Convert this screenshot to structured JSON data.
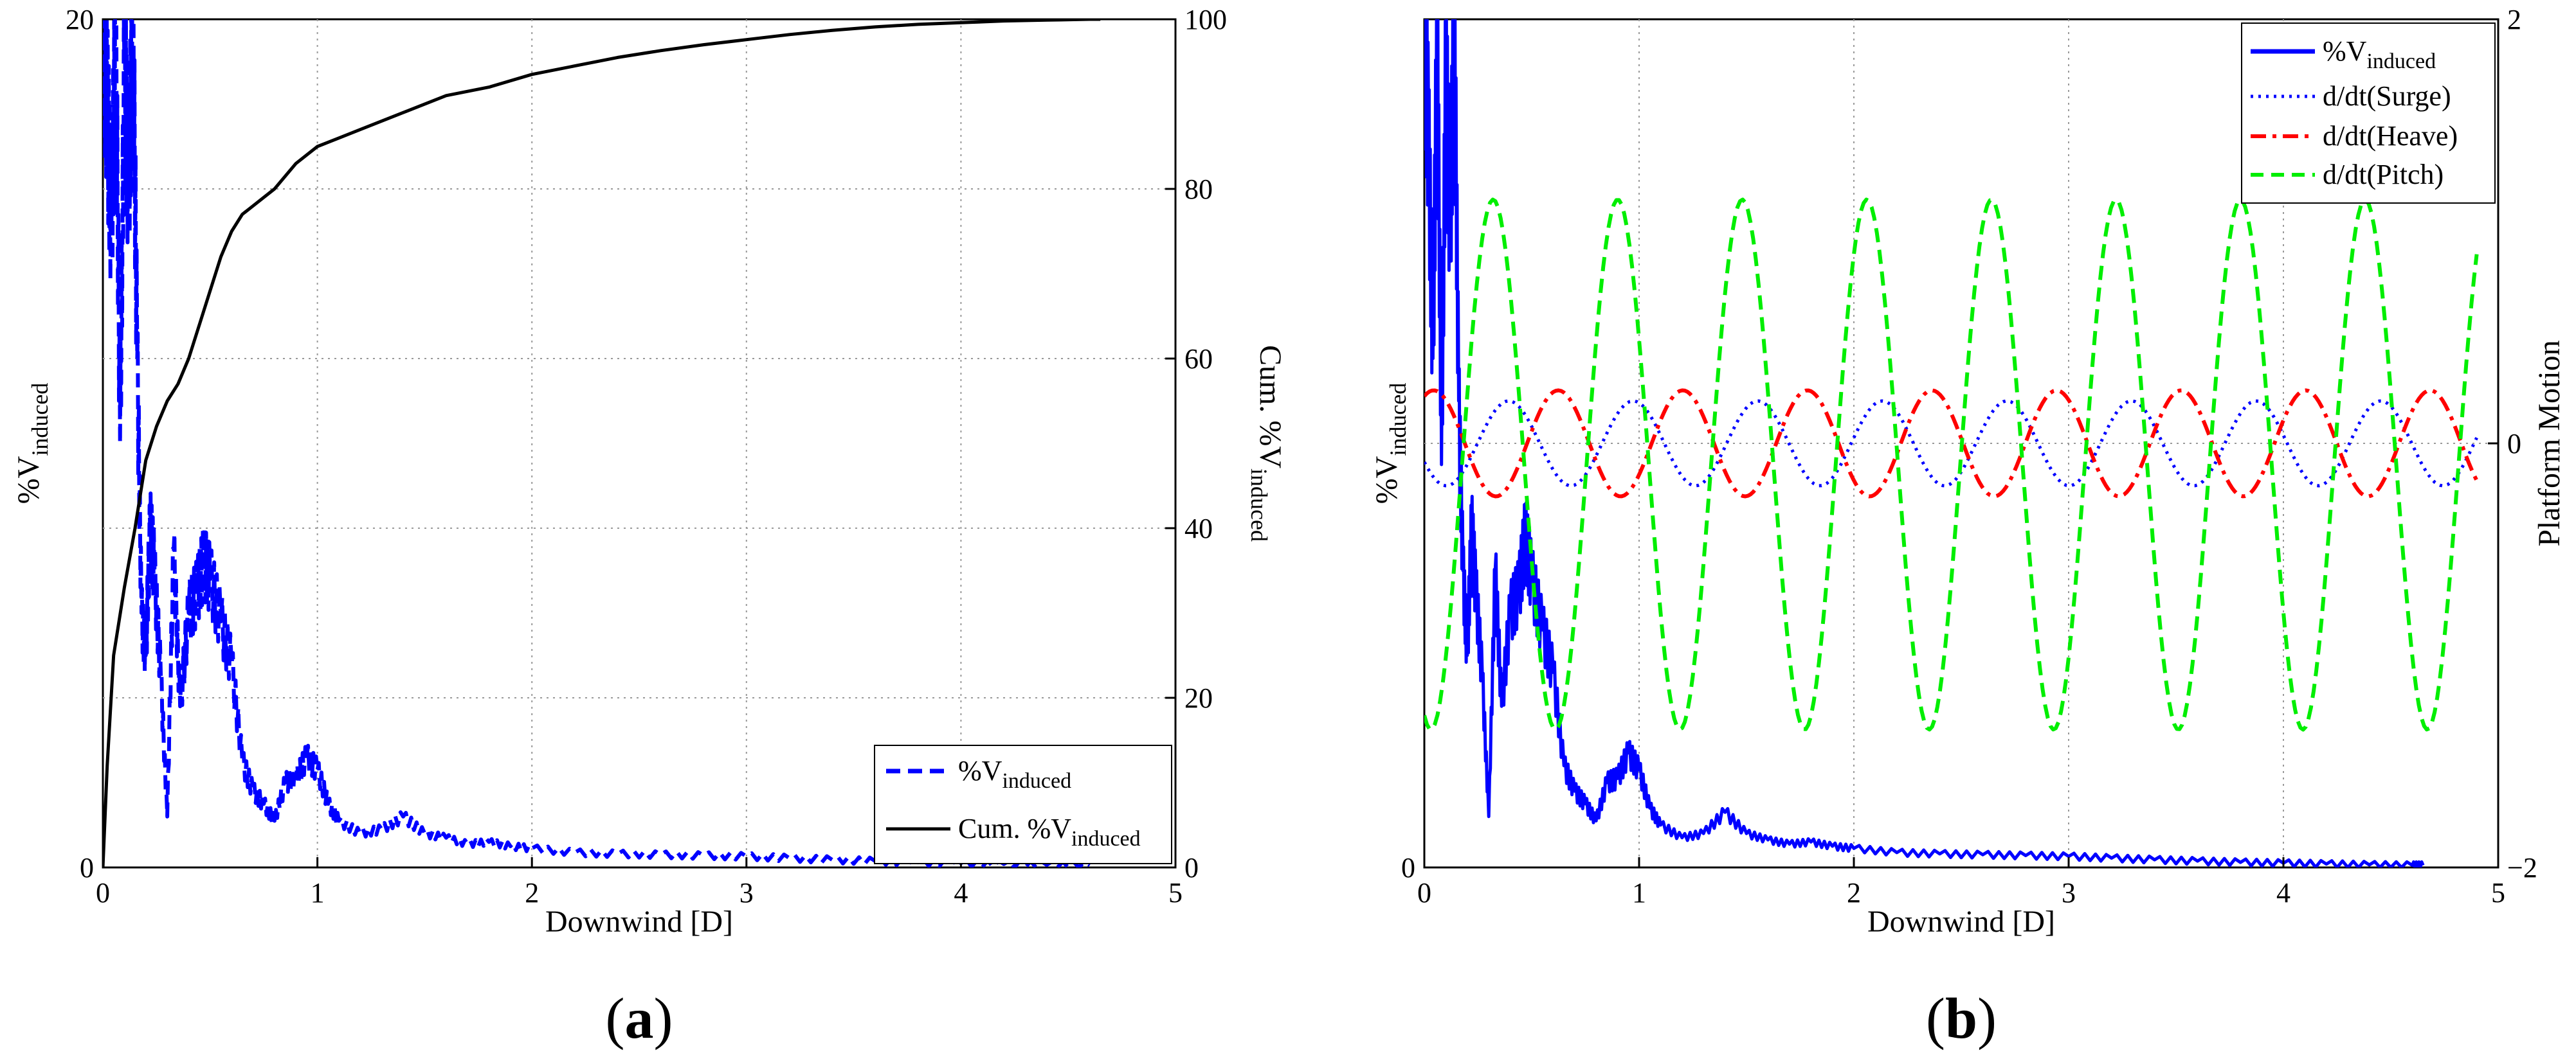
{
  "figure": {
    "panels": [
      {
        "label_open": "(",
        "label_letter": "a",
        "label_close": ")"
      },
      {
        "label_open": "(",
        "label_letter": "b",
        "label_close": ")"
      }
    ]
  },
  "chart_data": [
    {
      "type": "line",
      "panel": "a",
      "xlabel": "Downwind [D]",
      "ylabel": "%V",
      "ylabel_sub": "induced",
      "y2label": "Cum. %V",
      "y2label_sub": "induced",
      "xlim": [
        0,
        5
      ],
      "ylim": [
        0,
        20
      ],
      "y2lim": [
        0,
        100
      ],
      "xticks": [
        "0",
        "1",
        "2",
        "3",
        "4",
        "5"
      ],
      "yticks": [
        "0",
        "20"
      ],
      "y2ticks": [
        "0",
        "20",
        "40",
        "60",
        "80",
        "100"
      ],
      "grid": true,
      "legend_position": "bottom-right",
      "series": [
        {
          "name": "%V",
          "name_sub": "induced",
          "axis": "left",
          "color": "#0000ff",
          "style": "dashed",
          "x": [
            0.0,
            0.02,
            0.04,
            0.06,
            0.08,
            0.1,
            0.12,
            0.14,
            0.16,
            0.18,
            0.2,
            0.22,
            0.24,
            0.27,
            0.3,
            0.33,
            0.36,
            0.4,
            0.44,
            0.47,
            0.5,
            0.55,
            0.6,
            0.65,
            0.7,
            0.75,
            0.8,
            0.85,
            0.9,
            0.95,
            1.0,
            1.05,
            1.1,
            1.2,
            1.3,
            1.4,
            1.5,
            1.6,
            1.7,
            1.8,
            1.9,
            2.0,
            2.2,
            2.4,
            2.6,
            2.8,
            3.0,
            3.2,
            3.4,
            3.6,
            3.8,
            4.0,
            4.2,
            4.4,
            4.6
          ],
          "y": [
            20,
            18,
            15,
            20,
            10,
            19,
            16,
            20,
            12,
            6,
            5,
            8,
            7,
            4.5,
            1.2,
            7.5,
            3.8,
            6.0,
            6.5,
            7.2,
            6.8,
            5.8,
            4.8,
            2.5,
            1.8,
            1.5,
            1.1,
            2.0,
            2.1,
            2.6,
            2.3,
            1.5,
            1.1,
            0.8,
            0.9,
            1.2,
            0.8,
            0.7,
            0.55,
            0.6,
            0.5,
            0.45,
            0.35,
            0.32,
            0.3,
            0.28,
            0.26,
            0.22,
            0.18,
            0.15,
            0.12,
            0.1,
            0.08,
            0.06,
            0.05
          ]
        },
        {
          "name": "Cum. %V",
          "name_sub": "induced",
          "axis": "right",
          "color": "#000000",
          "style": "solid",
          "x": [
            0.0,
            0.02,
            0.05,
            0.1,
            0.15,
            0.2,
            0.25,
            0.3,
            0.35,
            0.4,
            0.45,
            0.5,
            0.55,
            0.6,
            0.65,
            0.7,
            0.8,
            0.9,
            1.0,
            1.1,
            1.2,
            1.4,
            1.6,
            1.8,
            2.0,
            2.2,
            2.4,
            2.6,
            2.8,
            3.0,
            3.2,
            3.4,
            3.6,
            3.8,
            4.0,
            4.2,
            4.4,
            4.6,
            4.65
          ],
          "y": [
            0,
            12,
            25,
            33,
            40,
            48,
            52,
            55,
            57,
            60,
            64,
            68,
            72,
            75,
            77,
            78,
            80,
            83,
            85,
            86,
            87,
            89,
            91,
            92,
            93.5,
            94.5,
            95.5,
            96.3,
            97,
            97.6,
            98.2,
            98.7,
            99.1,
            99.4,
            99.6,
            99.8,
            99.9,
            100,
            100
          ]
        }
      ]
    },
    {
      "type": "line",
      "panel": "b",
      "xlabel": "Downwind [D]",
      "ylabel": "%V",
      "ylabel_sub": "induced",
      "y2label": "Platform Motion",
      "xlim": [
        0,
        5
      ],
      "ylim": [
        0,
        20
      ],
      "y2lim": [
        -2,
        2
      ],
      "xticks": [
        "0",
        "1",
        "2",
        "3",
        "4",
        "5"
      ],
      "yticks": [
        "0"
      ],
      "y2ticks": [
        "−2",
        "0",
        "2"
      ],
      "grid": true,
      "legend_position": "top-right",
      "series": [
        {
          "name": "%V",
          "name_sub": "induced",
          "axis": "left",
          "color": "#0000ff",
          "style": "solid",
          "x": [
            0.0,
            0.02,
            0.04,
            0.06,
            0.08,
            0.1,
            0.12,
            0.14,
            0.16,
            0.18,
            0.2,
            0.22,
            0.24,
            0.27,
            0.3,
            0.33,
            0.36,
            0.4,
            0.44,
            0.47,
            0.5,
            0.55,
            0.6,
            0.65,
            0.7,
            0.75,
            0.8,
            0.85,
            0.9,
            0.95,
            1.0,
            1.05,
            1.1,
            1.2,
            1.3,
            1.4,
            1.5,
            1.6,
            1.7,
            1.8,
            1.9,
            2.0,
            2.2,
            2.4,
            2.6,
            2.8,
            3.0,
            3.2,
            3.4,
            3.6,
            3.8,
            4.0,
            4.2,
            4.4,
            4.6,
            4.65
          ],
          "y": [
            20,
            17,
            12,
            20,
            9.5,
            19,
            15,
            20,
            11,
            7,
            5,
            8,
            6.5,
            4.5,
            1.2,
            7.0,
            3.8,
            6.0,
            6.5,
            7.8,
            6.8,
            5.6,
            4.6,
            2.4,
            1.8,
            1.5,
            1.1,
            2.0,
            2.1,
            2.7,
            2.3,
            1.4,
            1.0,
            0.7,
            0.8,
            1.3,
            0.8,
            0.65,
            0.55,
            0.6,
            0.5,
            0.45,
            0.35,
            0.32,
            0.3,
            0.28,
            0.26,
            0.22,
            0.18,
            0.15,
            0.12,
            0.1,
            0.08,
            0.06,
            0.05,
            0.05
          ]
        },
        {
          "name": "d/dt(Surge)",
          "axis": "right",
          "color": "#0000ff",
          "style": "dotted",
          "x0": 0,
          "x1": 4.9,
          "amplitude": 0.2,
          "period": 0.58,
          "phase": 3.6,
          "offset": 0.0
        },
        {
          "name": "d/dt(Heave)",
          "axis": "right",
          "color": "#ff0000",
          "style": "dashdot",
          "x0": 0,
          "x1": 4.9,
          "amplitude": 0.25,
          "period": 0.58,
          "phase": 1.1,
          "offset": 0.0
        },
        {
          "name": "d/dt(Pitch)",
          "axis": "right",
          "color": "#00ee00",
          "style": "dashed",
          "x0": 0,
          "x1": 4.9,
          "amplitude": 1.25,
          "period": 0.58,
          "phase": -1.9,
          "offset": -0.1
        }
      ]
    }
  ]
}
